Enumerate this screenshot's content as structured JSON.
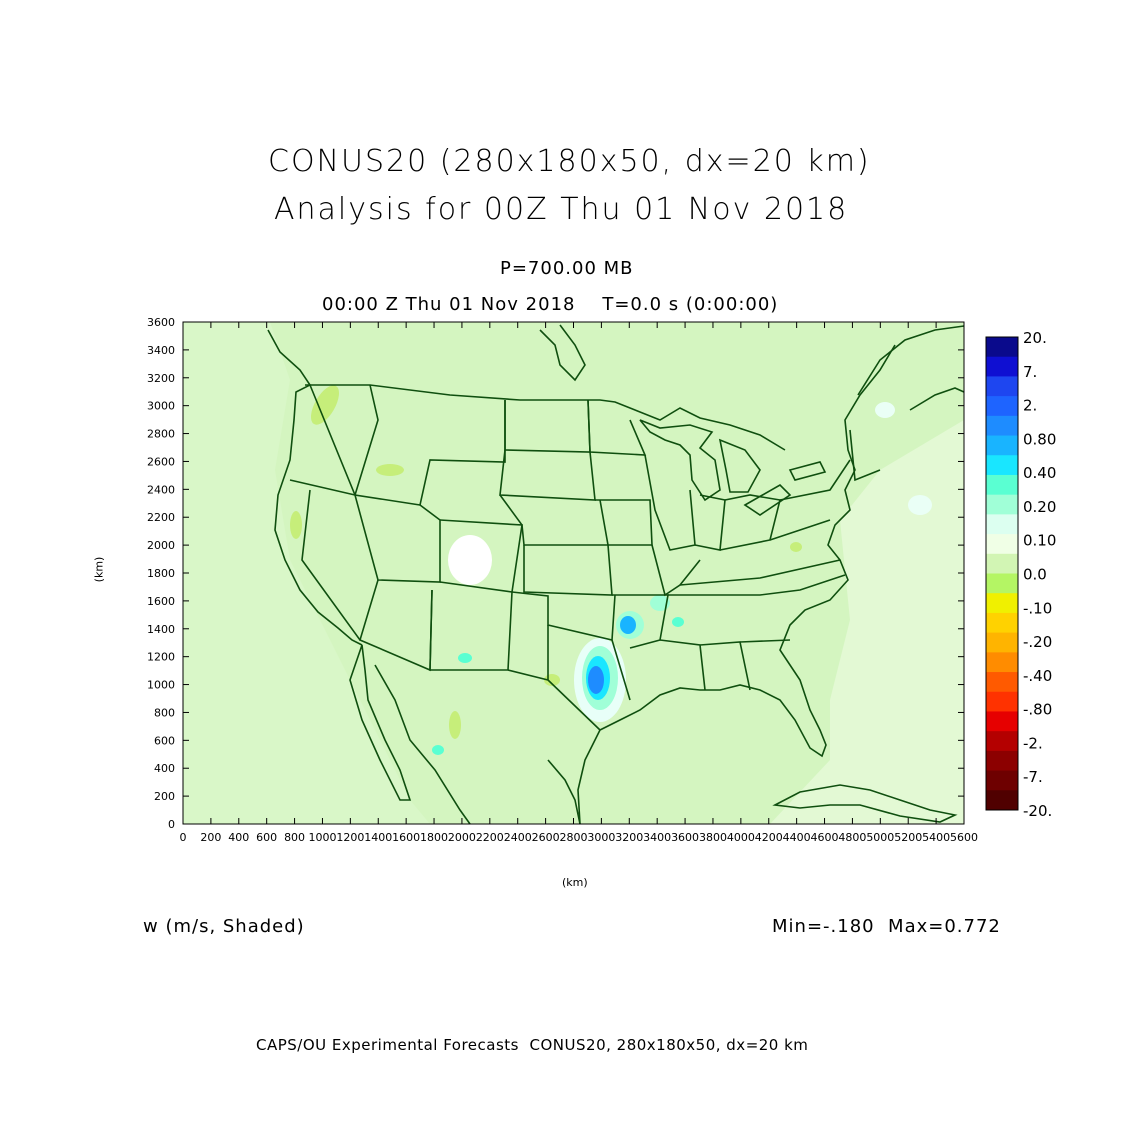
{
  "title_line1": "CONUS20 (280x180x50, dx=20 km)",
  "title_line2": "Analysis for 00Z Thu 01 Nov 2018",
  "level": "P=700.00 MB",
  "valid_time": "00:00 Z Thu 01 Nov 2018    T=0.0 s (0:00:00)",
  "y_axis_label": "(km)",
  "x_axis_label": "(km)",
  "y_ticks": [
    "0",
    "200",
    "400",
    "600",
    "800",
    "1000",
    "1200",
    "1400",
    "1600",
    "1800",
    "2000",
    "2200",
    "2400",
    "2600",
    "2800",
    "3000",
    "3200",
    "3400",
    "3600"
  ],
  "x_ticks": [
    "0",
    "200",
    "400",
    "600",
    "800",
    "1000",
    "1200",
    "1400",
    "1600",
    "1800",
    "2000",
    "2200",
    "2400",
    "2600",
    "2800",
    "3000",
    "3200",
    "3400",
    "3600",
    "3800",
    "4000",
    "4200",
    "4400",
    "4600",
    "4800",
    "5000",
    "5200",
    "5400",
    "5600"
  ],
  "variable_label": "w (m/s, Shaded)",
  "min_max": "Min=-.180  Max=0.772",
  "footer": "CAPS/OU Experimental Forecasts  CONUS20, 280x180x50, dx=20 km",
  "colorbar": {
    "labels": [
      "20.",
      "7.",
      "2.",
      "0.80",
      "0.40",
      "0.20",
      "0.10",
      "0.0",
      "-.10",
      "-.20",
      "-.40",
      "-.80",
      "-2.",
      "-7.",
      "-20."
    ],
    "colors": [
      "#0a0a8c",
      "#0f0fd2",
      "#1e46f0",
      "#1e64ff",
      "#1e8cff",
      "#19b4ff",
      "#19e6ff",
      "#5affd2",
      "#a0ffd7",
      "#dcfff0",
      "#f0ffe6",
      "#d2f5b4",
      "#b4f564",
      "#f0f000",
      "#ffd200",
      "#ffb400",
      "#ff8c00",
      "#ff5a00",
      "#ff3200",
      "#e60000",
      "#b40000",
      "#8c0000",
      "#6e0000",
      "#500000"
    ]
  },
  "map": {
    "background": "#d4f5c0",
    "coastline_color": "#0f4f0f"
  }
}
